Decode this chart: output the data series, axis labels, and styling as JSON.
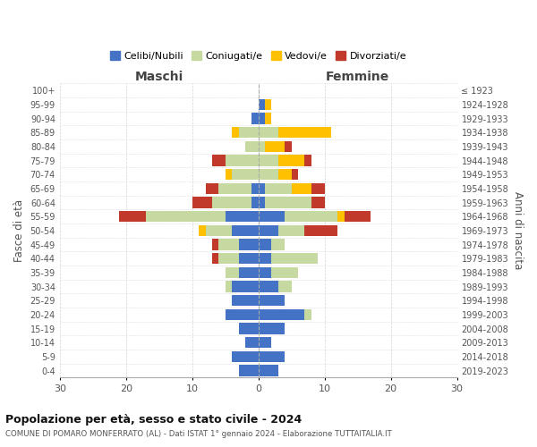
{
  "age_groups": [
    "0-4",
    "5-9",
    "10-14",
    "15-19",
    "20-24",
    "25-29",
    "30-34",
    "35-39",
    "40-44",
    "45-49",
    "50-54",
    "55-59",
    "60-64",
    "65-69",
    "70-74",
    "75-79",
    "80-84",
    "85-89",
    "90-94",
    "95-99",
    "100+"
  ],
  "birth_years": [
    "2019-2023",
    "2014-2018",
    "2009-2013",
    "2004-2008",
    "1999-2003",
    "1994-1998",
    "1989-1993",
    "1984-1988",
    "1979-1983",
    "1974-1978",
    "1969-1973",
    "1964-1968",
    "1959-1963",
    "1954-1958",
    "1949-1953",
    "1944-1948",
    "1939-1943",
    "1934-1938",
    "1929-1933",
    "1924-1928",
    "≤ 1923"
  ],
  "males": {
    "celibi": [
      3,
      4,
      2,
      3,
      5,
      4,
      4,
      3,
      3,
      3,
      4,
      5,
      1,
      1,
      0,
      0,
      0,
      0,
      1,
      0,
      0
    ],
    "coniugati": [
      0,
      0,
      0,
      0,
      0,
      0,
      1,
      2,
      3,
      3,
      4,
      12,
      6,
      5,
      4,
      5,
      2,
      3,
      0,
      0,
      0
    ],
    "vedovi": [
      0,
      0,
      0,
      0,
      0,
      0,
      0,
      0,
      0,
      0,
      1,
      0,
      0,
      0,
      1,
      0,
      0,
      1,
      0,
      0,
      0
    ],
    "divorziati": [
      0,
      0,
      0,
      0,
      0,
      0,
      0,
      0,
      1,
      1,
      0,
      4,
      3,
      2,
      0,
      2,
      0,
      0,
      0,
      0,
      0
    ]
  },
  "females": {
    "nubili": [
      3,
      4,
      2,
      4,
      7,
      4,
      3,
      2,
      2,
      2,
      3,
      4,
      1,
      1,
      0,
      0,
      0,
      0,
      1,
      1,
      0
    ],
    "coniugate": [
      0,
      0,
      0,
      0,
      1,
      0,
      2,
      4,
      7,
      2,
      4,
      8,
      7,
      4,
      3,
      3,
      1,
      3,
      0,
      0,
      0
    ],
    "vedove": [
      0,
      0,
      0,
      0,
      0,
      0,
      0,
      0,
      0,
      0,
      0,
      1,
      0,
      3,
      2,
      4,
      3,
      8,
      1,
      1,
      0
    ],
    "divorziate": [
      0,
      0,
      0,
      0,
      0,
      0,
      0,
      0,
      0,
      0,
      5,
      4,
      2,
      2,
      1,
      1,
      1,
      0,
      0,
      0,
      0
    ]
  },
  "colors": {
    "celibi_nubili": "#4472c4",
    "coniugati": "#c5d9a0",
    "vedovi": "#ffc000",
    "divorziati": "#c0392b"
  },
  "xlim": [
    -30,
    30
  ],
  "xticks": [
    -30,
    -20,
    -10,
    0,
    10,
    20,
    30
  ],
  "xticklabels": [
    "30",
    "20",
    "10",
    "0",
    "10",
    "20",
    "30"
  ],
  "title1": "Popolazione per età, sesso e stato civile - 2024",
  "title2": "COMUNE DI POMARO MONFERRATO (AL) - Dati ISTAT 1° gennaio 2024 - Elaborazione TUTTAITALIA.IT",
  "ylabel_left": "Fasce di età",
  "ylabel_right": "Anni di nascita",
  "label_maschi": "Maschi",
  "label_femmine": "Femmine",
  "legend_labels": [
    "Celibi/Nubili",
    "Coniugati/e",
    "Vedovi/e",
    "Divorziati/e"
  ],
  "background_color": "#ffffff"
}
